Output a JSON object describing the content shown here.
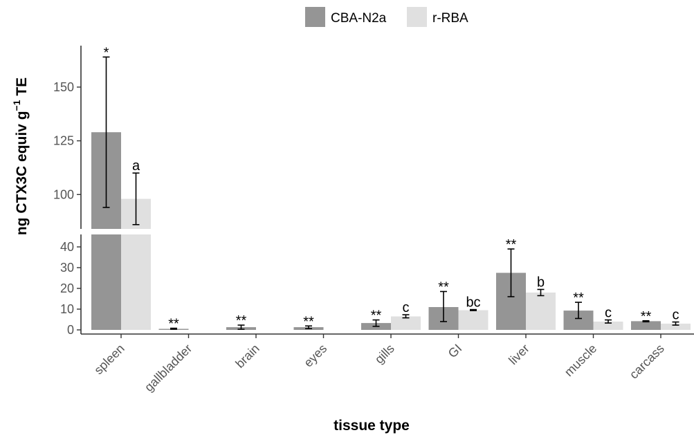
{
  "chart_data": {
    "type": "bar",
    "xlabel": "tissue type",
    "ylabel": "ng CTX3C equiv g",
    "ylabel_superscript": "−1",
    "ylabel_suffix": " TE",
    "categories": [
      "spleen",
      "gallbladder",
      "brain",
      "eyes",
      "gills",
      "GI",
      "liver",
      "muscle",
      "carcass"
    ],
    "axis_break": {
      "upper": {
        "ylim": [
          84,
          168
        ],
        "ticks": [
          100,
          125,
          150
        ]
      },
      "lower": {
        "ylim": [
          -2,
          46
        ],
        "ticks": [
          0,
          10,
          20,
          30,
          40
        ]
      }
    },
    "legend_position": "top",
    "series": [
      {
        "name": "CBA-N2a",
        "color": "#959595",
        "values": [
          129,
          0.5,
          1.3,
          1.3,
          3.3,
          11,
          27.5,
          9.3,
          4.2
        ],
        "err_low": [
          94,
          0.3,
          0.3,
          0.6,
          1.7,
          4,
          16,
          5.5,
          3.9
        ],
        "err_high": [
          164,
          0.8,
          2.3,
          1.9,
          4.8,
          18.5,
          39,
          13.3,
          4.4
        ],
        "labels": [
          "*",
          "**",
          "**",
          "**",
          "**",
          "**",
          "**",
          "**",
          "**"
        ]
      },
      {
        "name": "r-RBA",
        "color": "#e0e0e0",
        "values": [
          98,
          null,
          null,
          null,
          6.5,
          9.5,
          18,
          4,
          3
        ],
        "err_low": [
          86,
          null,
          null,
          null,
          5.8,
          9.3,
          16.5,
          3.3,
          2.3
        ],
        "err_high": [
          110,
          null,
          null,
          null,
          7.3,
          9.8,
          19.5,
          4.8,
          3.8
        ],
        "labels": [
          "a",
          "",
          "",
          "",
          "c",
          "bc",
          "b",
          "c",
          "c"
        ]
      }
    ]
  }
}
